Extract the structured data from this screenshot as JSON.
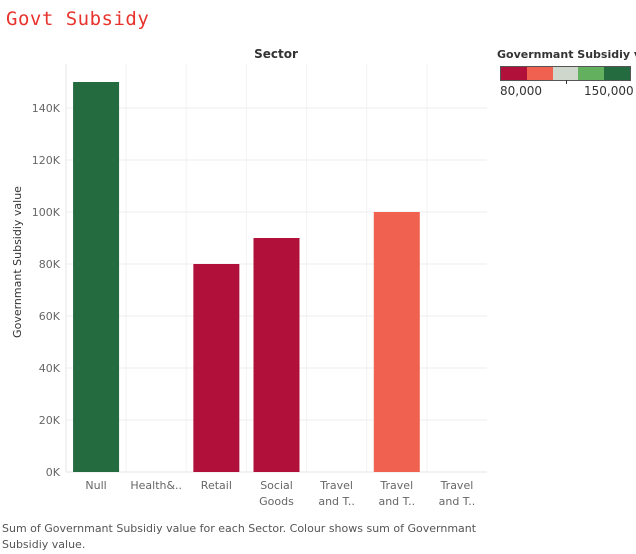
{
  "title": "Govt Subsidy",
  "caption": "Sum of Governmant Subsidiy value for each Sector.  Colour shows sum of Governmant Subsidiy value.",
  "legend": {
    "title": "Governmant Subsidiy v..",
    "min_label": "80,000",
    "max_label": "150,000",
    "colors": [
      "#b0103a",
      "#f0614f",
      "#cfd6cb",
      "#63b05f",
      "#246b40"
    ]
  },
  "chart_data": {
    "type": "bar",
    "title": "Sector",
    "xlabel": "",
    "ylabel": "Governmant Subsidiy value",
    "ylim": [
      0,
      150000
    ],
    "yticks": [
      0,
      20000,
      40000,
      60000,
      80000,
      100000,
      120000,
      140000
    ],
    "ytick_labels": [
      "0K",
      "20K",
      "40K",
      "60K",
      "80K",
      "100K",
      "120K",
      "140K"
    ],
    "grid": true,
    "categories": [
      [
        "Null"
      ],
      [
        "Health&.."
      ],
      [
        "Retail"
      ],
      [
        "Social",
        "Goods"
      ],
      [
        "Travel",
        "and T.."
      ],
      [
        "Travel",
        "and T.."
      ],
      [
        "Travel",
        "and T.."
      ]
    ],
    "values": [
      150000,
      null,
      80000,
      90000,
      null,
      100000,
      null
    ],
    "colors": [
      "#246b40",
      null,
      "#b0103a",
      "#b0103a",
      null,
      "#f0614f",
      null
    ]
  }
}
